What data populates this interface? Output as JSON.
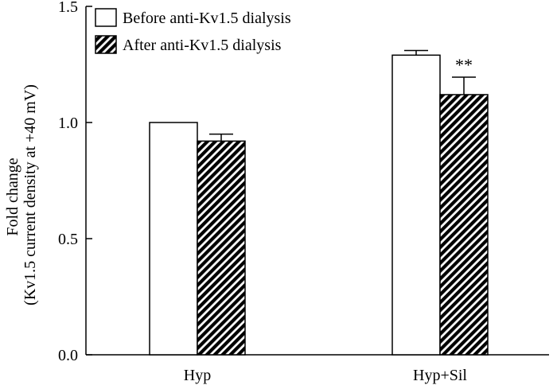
{
  "chart_data": {
    "type": "bar",
    "categories": [
      "Hyp",
      "Hyp+Sil"
    ],
    "series": [
      {
        "name": "Before anti-Kv1.5 dialysis",
        "values": [
          1.0,
          1.29
        ],
        "errors": [
          0.0,
          0.02
        ],
        "fill": "white"
      },
      {
        "name": "After anti-Kv1.5 dialysis",
        "values": [
          0.92,
          1.12
        ],
        "errors": [
          0.03,
          0.075
        ],
        "fill": "hatched"
      }
    ],
    "ylim": [
      0.0,
      1.5
    ],
    "yticks": [
      0.0,
      0.5,
      1.0,
      1.5
    ],
    "ytick_labels": [
      "0.0",
      "0.5",
      "1.0",
      "1.5"
    ],
    "ylabel_line1": "Fold change",
    "ylabel_line2": "(Kv1.5 current density at +40 mV)",
    "xlabel": "",
    "title": "",
    "legend_position": "top-left",
    "annotations": [
      {
        "category": "Hyp+Sil",
        "series": "After anti-Kv1.5 dialysis",
        "text": "**"
      }
    ]
  },
  "colors": {
    "axis": "#000000",
    "bar_fill": "#ffffff",
    "hatch": "#000000"
  }
}
